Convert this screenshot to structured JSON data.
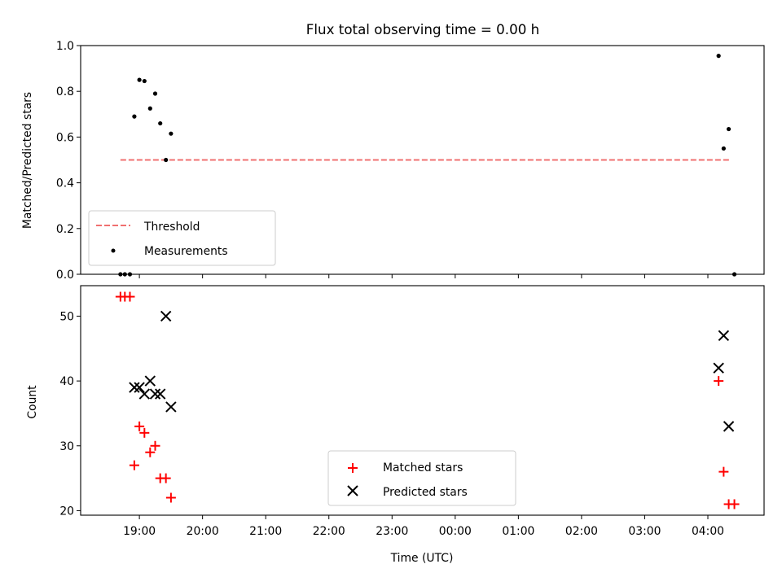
{
  "chart_data": [
    {
      "type": "scatter",
      "title": "Flux total observing time = 0.00 h",
      "xlabel": "",
      "ylabel": "Matched/Predicted stars",
      "ylim": [
        0,
        1.0
      ],
      "yticks": [
        "0.0",
        "0.2",
        "0.4",
        "0.6",
        "0.8",
        "1.0"
      ],
      "grid": false,
      "legend_position": "lower-left",
      "threshold": {
        "name": "Threshold",
        "value": 0.5,
        "x_start": 18.7,
        "x_end": 28.35,
        "color": "#f07070"
      },
      "series": [
        {
          "name": "Measurements",
          "color": "#000000",
          "marker": "dot",
          "x": [
            18.7,
            18.77,
            18.85,
            18.92,
            19.0,
            19.08,
            19.17,
            19.25,
            19.33,
            19.42,
            19.5,
            28.17,
            28.25,
            28.33,
            28.42
          ],
          "y": [
            0.0,
            0.0,
            0.0,
            0.69,
            0.85,
            0.845,
            0.725,
            0.79,
            0.66,
            0.5,
            0.615,
            0.955,
            0.55,
            0.635,
            0.0
          ]
        }
      ]
    },
    {
      "type": "scatter",
      "title": "",
      "xlabel": "Time (UTC)",
      "ylabel": "Count",
      "ylim": [
        19.3,
        54.7
      ],
      "yticks": [
        "20",
        "30",
        "40",
        "50"
      ],
      "xlim": [
        18.07,
        28.89
      ],
      "xticks": [
        "19:00",
        "20:00",
        "21:00",
        "22:00",
        "23:00",
        "00:00",
        "01:00",
        "02:00",
        "03:00",
        "04:00"
      ],
      "grid": false,
      "legend_position": "lower-center",
      "series": [
        {
          "name": "Matched stars",
          "color": "#ff0000",
          "marker": "plus",
          "x": [
            18.7,
            18.77,
            18.85,
            18.92,
            19.0,
            19.08,
            19.17,
            19.25,
            19.33,
            19.42,
            19.5,
            28.17,
            28.25,
            28.33,
            28.42
          ],
          "y": [
            53,
            53,
            53,
            27,
            33,
            32,
            29,
            30,
            25,
            25,
            22,
            40,
            26,
            21,
            21
          ]
        },
        {
          "name": "Predicted stars",
          "color": "#000000",
          "marker": "x",
          "x": [
            18.92,
            19.0,
            19.08,
            19.17,
            19.25,
            19.33,
            19.42,
            19.5,
            28.17,
            28.25,
            28.33
          ],
          "y": [
            39,
            39,
            38,
            40,
            38,
            38,
            50,
            36,
            42,
            47,
            33
          ]
        }
      ]
    }
  ]
}
